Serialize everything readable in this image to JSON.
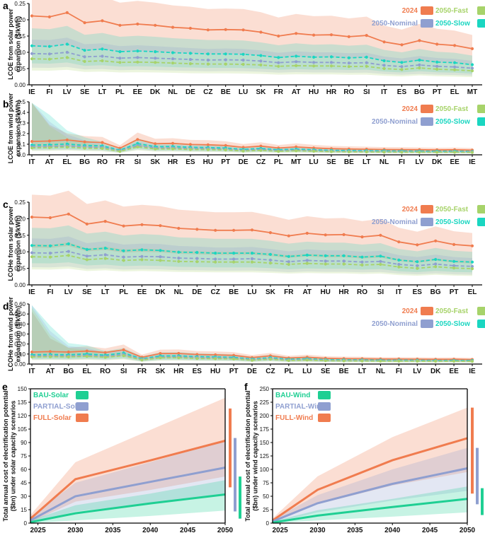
{
  "colors": {
    "y2024": "#f07c4f",
    "fast": "#a7d36a",
    "nominal": "#8f9fd0",
    "slow": "#1ad6c1",
    "bau": "#1fcf93",
    "partial": "#8f9fd0",
    "full": "#f07c4f"
  },
  "legend_top": {
    "y2024": "2024",
    "fast": "2050-Fast",
    "nominal": "2050-Nominal",
    "slow": "2050-Slow"
  },
  "legend_bottom_e": {
    "bau": "BAU-Solar",
    "partial": "PARTIAL-Solar",
    "full": "FULL-Solar"
  },
  "legend_bottom_f": {
    "bau": "BAU-Wind",
    "partial": "PARTIAL-Wind",
    "full": "FULL-Wind"
  },
  "chart_data": [
    {
      "panel": "a",
      "type": "line",
      "ylabel_lines": [
        "LCOE from solar power",
        "expansion ($/kWh)"
      ],
      "ylim": [
        0,
        0.25
      ],
      "yticks": [
        0,
        0.05,
        0.1,
        0.15,
        0.2,
        0.25
      ],
      "ytick_labels": [
        "0.00",
        "0.05",
        "0.10",
        "0.15",
        "0.20",
        "0.25"
      ],
      "categories": [
        "IE",
        "FI",
        "LV",
        "SE",
        "LT",
        "PL",
        "EE",
        "DK",
        "NL",
        "DE",
        "CZ",
        "BE",
        "LU",
        "SK",
        "FR",
        "AT",
        "HU",
        "HR",
        "RO",
        "SI",
        "IT",
        "ES",
        "BG",
        "PT",
        "EL",
        "MT"
      ],
      "series": [
        {
          "name": "2024",
          "values": [
            0.212,
            0.209,
            0.222,
            0.191,
            0.197,
            0.183,
            0.187,
            0.183,
            0.177,
            0.174,
            0.169,
            0.17,
            0.169,
            0.162,
            0.15,
            0.158,
            0.153,
            0.154,
            0.148,
            0.152,
            0.132,
            0.123,
            0.136,
            0.125,
            0.121,
            0.111
          ]
        },
        {
          "name": "2050-Slow",
          "values": [
            0.12,
            0.118,
            0.125,
            0.106,
            0.11,
            0.102,
            0.104,
            0.102,
            0.099,
            0.097,
            0.095,
            0.095,
            0.094,
            0.09,
            0.084,
            0.088,
            0.085,
            0.086,
            0.083,
            0.085,
            0.074,
            0.069,
            0.076,
            0.07,
            0.068,
            0.062
          ]
        },
        {
          "name": "2050-Nominal",
          "values": [
            0.096,
            0.095,
            0.1,
            0.086,
            0.088,
            0.082,
            0.084,
            0.082,
            0.08,
            0.078,
            0.076,
            0.077,
            0.076,
            0.073,
            0.068,
            0.071,
            0.069,
            0.069,
            0.067,
            0.068,
            0.06,
            0.056,
            0.061,
            0.057,
            0.055,
            0.051
          ]
        },
        {
          "name": "2050-Fast",
          "values": [
            0.08,
            0.079,
            0.084,
            0.072,
            0.074,
            0.069,
            0.07,
            0.069,
            0.067,
            0.065,
            0.064,
            0.064,
            0.063,
            0.061,
            0.057,
            0.059,
            0.058,
            0.058,
            0.056,
            0.057,
            0.05,
            0.047,
            0.052,
            0.048,
            0.046,
            0.043
          ]
        }
      ]
    },
    {
      "panel": "b",
      "type": "line",
      "ylabel_lines": [
        "LCOE from wind power",
        "expansion ($/kWh)"
      ],
      "ylim": [
        0,
        0.5
      ],
      "yticks": [
        0,
        0.1,
        0.2,
        0.3,
        0.4,
        0.5
      ],
      "ytick_labels": [
        "0.0",
        "0.1",
        "0.2",
        "0.3",
        "0.4",
        "0.5"
      ],
      "categories": [
        "IT",
        "AT",
        "EL",
        "BG",
        "RO",
        "FR",
        "SI",
        "SK",
        "HR",
        "ES",
        "HU",
        "PT",
        "DE",
        "CZ",
        "PL",
        "MT",
        "LU",
        "SE",
        "BE",
        "LT",
        "NL",
        "FI",
        "LV",
        "DK",
        "EE",
        "IE"
      ],
      "series": [
        {
          "name": "2024",
          "values": [
            0.126,
            0.13,
            0.14,
            0.122,
            0.116,
            0.062,
            0.145,
            0.105,
            0.108,
            0.097,
            0.095,
            0.088,
            0.07,
            0.082,
            0.064,
            0.074,
            0.065,
            0.058,
            0.055,
            0.053,
            0.05,
            0.049,
            0.048,
            0.046,
            0.047,
            0.044
          ]
        },
        {
          "name": "2050-Slow",
          "values": [
            0.092,
            0.095,
            0.102,
            0.089,
            0.085,
            0.045,
            0.106,
            0.077,
            0.079,
            0.071,
            0.069,
            0.064,
            0.051,
            0.06,
            0.047,
            0.054,
            0.047,
            0.042,
            0.04,
            0.039,
            0.037,
            0.036,
            0.035,
            0.034,
            0.034,
            0.032
          ]
        },
        {
          "name": "2050-Nominal",
          "values": [
            0.076,
            0.079,
            0.085,
            0.074,
            0.07,
            0.037,
            0.088,
            0.064,
            0.065,
            0.059,
            0.058,
            0.053,
            0.042,
            0.05,
            0.039,
            0.045,
            0.039,
            0.035,
            0.033,
            0.032,
            0.03,
            0.03,
            0.029,
            0.028,
            0.028,
            0.027
          ]
        },
        {
          "name": "2050-Fast",
          "values": [
            0.065,
            0.068,
            0.073,
            0.063,
            0.06,
            0.032,
            0.075,
            0.055,
            0.056,
            0.05,
            0.049,
            0.046,
            0.036,
            0.042,
            0.033,
            0.038,
            0.034,
            0.03,
            0.028,
            0.027,
            0.026,
            0.025,
            0.025,
            0.024,
            0.024,
            0.023
          ]
        }
      ]
    },
    {
      "panel": "c",
      "type": "line",
      "ylabel_lines": [
        "LCOHe from solar power",
        "expansion ($/kWh)"
      ],
      "ylim": [
        0,
        0.25
      ],
      "yticks": [
        0,
        0.05,
        0.1,
        0.15,
        0.2,
        0.25
      ],
      "ytick_labels": [
        "0.00",
        "0.05",
        "0.10",
        "0.15",
        "0.20",
        "0.25"
      ],
      "categories": [
        "IE",
        "FI",
        "LV",
        "SE",
        "LT",
        "PL",
        "EE",
        "DK",
        "NL",
        "DE",
        "CZ",
        "BE",
        "LU",
        "SK",
        "FR",
        "AT",
        "HU",
        "HR",
        "RO",
        "SI",
        "IT",
        "ES",
        "BG",
        "PT",
        "EL"
      ],
      "series": [
        {
          "name": "2024",
          "values": [
            0.205,
            0.203,
            0.214,
            0.184,
            0.192,
            0.178,
            0.182,
            0.179,
            0.171,
            0.168,
            0.165,
            0.165,
            0.166,
            0.158,
            0.148,
            0.156,
            0.151,
            0.152,
            0.145,
            0.15,
            0.13,
            0.121,
            0.133,
            0.122,
            0.118
          ]
        },
        {
          "name": "2050-Slow",
          "values": [
            0.119,
            0.118,
            0.124,
            0.107,
            0.111,
            0.103,
            0.106,
            0.104,
            0.099,
            0.098,
            0.096,
            0.096,
            0.096,
            0.092,
            0.086,
            0.09,
            0.088,
            0.088,
            0.084,
            0.087,
            0.075,
            0.07,
            0.077,
            0.071,
            0.069
          ]
        },
        {
          "name": "2050-Nominal",
          "values": [
            0.097,
            0.096,
            0.101,
            0.087,
            0.091,
            0.084,
            0.086,
            0.085,
            0.081,
            0.08,
            0.078,
            0.078,
            0.079,
            0.075,
            0.07,
            0.074,
            0.072,
            0.072,
            0.069,
            0.071,
            0.062,
            0.058,
            0.063,
            0.058,
            0.056
          ]
        },
        {
          "name": "2050-Fast",
          "values": [
            0.085,
            0.084,
            0.089,
            0.076,
            0.08,
            0.074,
            0.076,
            0.074,
            0.071,
            0.07,
            0.069,
            0.069,
            0.069,
            0.066,
            0.062,
            0.065,
            0.063,
            0.063,
            0.06,
            0.062,
            0.054,
            0.05,
            0.055,
            0.051,
            0.049
          ]
        }
      ]
    },
    {
      "panel": "d",
      "type": "line",
      "ylabel_lines": [
        "LCOHe from wind power",
        "expansion ($/kWh)"
      ],
      "ylim": [
        0,
        0.6
      ],
      "yticks": [
        0,
        0.1,
        0.2,
        0.3,
        0.4,
        0.5,
        0.6
      ],
      "ytick_labels": [
        "0.00",
        "0.10",
        "0.20",
        "0.30",
        "0.40",
        "0.50",
        "0.60"
      ],
      "categories": [
        "IT",
        "AT",
        "BG",
        "EL",
        "RO",
        "SI",
        "FR",
        "SK",
        "HR",
        "ES",
        "HU",
        "PT",
        "DE",
        "CZ",
        "PL",
        "LU",
        "SE",
        "BE",
        "LT",
        "NL",
        "FI",
        "LV",
        "DK",
        "EE",
        "IE"
      ],
      "series": [
        {
          "name": "2024",
          "values": [
            0.12,
            0.124,
            0.12,
            0.13,
            0.115,
            0.142,
            0.068,
            0.105,
            0.106,
            0.095,
            0.092,
            0.087,
            0.065,
            0.082,
            0.06,
            0.068,
            0.057,
            0.054,
            0.053,
            0.05,
            0.05,
            0.049,
            0.047,
            0.048,
            0.045
          ]
        },
        {
          "name": "2050-Slow",
          "values": [
            0.093,
            0.096,
            0.093,
            0.101,
            0.089,
            0.11,
            0.053,
            0.081,
            0.082,
            0.074,
            0.071,
            0.067,
            0.05,
            0.064,
            0.047,
            0.053,
            0.044,
            0.042,
            0.041,
            0.039,
            0.039,
            0.038,
            0.036,
            0.037,
            0.035
          ]
        },
        {
          "name": "2050-Nominal",
          "values": [
            0.08,
            0.083,
            0.08,
            0.087,
            0.077,
            0.095,
            0.046,
            0.07,
            0.071,
            0.064,
            0.062,
            0.058,
            0.044,
            0.055,
            0.04,
            0.046,
            0.038,
            0.036,
            0.036,
            0.034,
            0.034,
            0.033,
            0.032,
            0.032,
            0.03
          ]
        },
        {
          "name": "2050-Fast",
          "values": [
            0.071,
            0.073,
            0.071,
            0.077,
            0.068,
            0.084,
            0.04,
            0.062,
            0.063,
            0.056,
            0.054,
            0.051,
            0.038,
            0.048,
            0.035,
            0.04,
            0.034,
            0.032,
            0.031,
            0.03,
            0.03,
            0.029,
            0.028,
            0.028,
            0.027
          ]
        }
      ]
    },
    {
      "panel": "e",
      "type": "line",
      "ylabel_lines": [
        "Total annual cost of electrification potential",
        "($bn) under solar capacity scenarios"
      ],
      "x": [
        2024,
        2030,
        2040,
        2050
      ],
      "xlim": [
        2024,
        2050
      ],
      "xticks": [
        2025,
        2030,
        2035,
        2040,
        2045,
        2050
      ],
      "ylim": [
        0,
        150
      ],
      "yticks": [
        0,
        15,
        30,
        45,
        60,
        75,
        90,
        105,
        120,
        135,
        150
      ],
      "series": [
        {
          "name": "FULL-Solar",
          "values": [
            5,
            49,
            70,
            92
          ],
          "band_low": [
            1,
            24,
            37,
            52
          ],
          "band_high": [
            9,
            68,
            104,
            140
          ]
        },
        {
          "name": "PARTIAL-Solar",
          "values": [
            3,
            30,
            46,
            62
          ],
          "band_low": [
            0,
            13,
            22,
            33
          ],
          "band_high": [
            7,
            45,
            68,
            92
          ]
        },
        {
          "name": "BAU-Solar",
          "values": [
            1,
            11,
            22,
            32
          ],
          "band_low": [
            0,
            3,
            8,
            14
          ],
          "band_high": [
            3,
            20,
            33,
            48
          ]
        }
      ],
      "ranges_2050": [
        [
          40,
          128
        ],
        [
          13,
          95
        ],
        [
          5,
          52
        ]
      ]
    },
    {
      "panel": "f",
      "type": "line",
      "ylabel_lines": [
        "Total annual cost of electrification potential",
        "($bn) under wind capacity scenarios"
      ],
      "x": [
        2024,
        2030,
        2040,
        2050
      ],
      "xlim": [
        2024,
        2050
      ],
      "xticks": [
        2025,
        2030,
        2035,
        2040,
        2045,
        2050
      ],
      "ylim": [
        0,
        250
      ],
      "yticks": [
        0,
        25,
        50,
        75,
        100,
        125,
        150,
        175,
        200,
        225,
        250
      ],
      "series": [
        {
          "name": "FULL-Wind",
          "values": [
            5,
            62,
            117,
            158
          ],
          "band_low": [
            1,
            35,
            70,
            95
          ],
          "band_high": [
            9,
            87,
            160,
            215
          ]
        },
        {
          "name": "PARTIAL-Wind",
          "values": [
            3,
            37,
            73,
            102
          ],
          "band_low": [
            0,
            20,
            42,
            60
          ],
          "band_high": [
            7,
            52,
            100,
            140
          ]
        },
        {
          "name": "BAU-Wind",
          "values": [
            1,
            14,
            30,
            45
          ],
          "band_low": [
            0,
            5,
            12,
            20
          ],
          "band_high": [
            3,
            24,
            45,
            68
          ]
        }
      ],
      "ranges_2050": [
        [
          55,
          215
        ],
        [
          35,
          140
        ],
        [
          15,
          65
        ]
      ]
    }
  ]
}
